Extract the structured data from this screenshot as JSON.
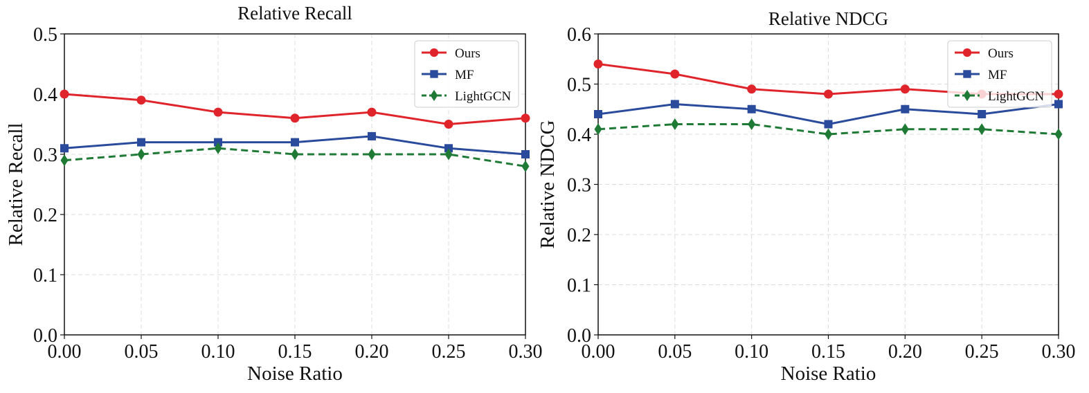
{
  "chart_data": [
    {
      "type": "line",
      "title": "Relative Recall",
      "xlabel": "Noise Ratio",
      "ylabel": "Relative Recall",
      "x": [
        0.0,
        0.05,
        0.1,
        0.15,
        0.2,
        0.25,
        0.3
      ],
      "xticks": [
        "0.00",
        "0.05",
        "0.10",
        "0.15",
        "0.20",
        "0.25",
        "0.30"
      ],
      "yticks": [
        "0.0",
        "0.1",
        "0.2",
        "0.3",
        "0.4",
        "0.5"
      ],
      "xlim": [
        0.0,
        0.3
      ],
      "ylim": [
        0.0,
        0.5
      ],
      "grid": true,
      "legend_position": "top-right",
      "series": [
        {
          "name": "Ours",
          "values": [
            0.4,
            0.39,
            0.37,
            0.36,
            0.37,
            0.35,
            0.36
          ],
          "color": "#e0242b",
          "marker": "circle",
          "dash": "solid"
        },
        {
          "name": "MF",
          "values": [
            0.31,
            0.32,
            0.32,
            0.32,
            0.33,
            0.31,
            0.3
          ],
          "color": "#2a4b9b",
          "marker": "square",
          "dash": "solid"
        },
        {
          "name": "LightGCN",
          "values": [
            0.29,
            0.3,
            0.31,
            0.3,
            0.3,
            0.3,
            0.28
          ],
          "color": "#1f7a35",
          "marker": "diamond",
          "dash": "dashed"
        }
      ]
    },
    {
      "type": "line",
      "title": "Relative NDCG",
      "xlabel": "Noise Ratio",
      "ylabel": "Relative NDCG",
      "x": [
        0.0,
        0.05,
        0.1,
        0.15,
        0.2,
        0.25,
        0.3
      ],
      "xticks": [
        "0.00",
        "0.05",
        "0.10",
        "0.15",
        "0.20",
        "0.25",
        "0.30"
      ],
      "yticks": [
        "0.0",
        "0.1",
        "0.2",
        "0.3",
        "0.4",
        "0.5",
        "0.6"
      ],
      "xlim": [
        0.0,
        0.3
      ],
      "ylim": [
        0.0,
        0.6
      ],
      "grid": true,
      "legend_position": "top-right",
      "series": [
        {
          "name": "Ours",
          "values": [
            0.54,
            0.52,
            0.49,
            0.48,
            0.49,
            0.48,
            0.48
          ],
          "color": "#e0242b",
          "marker": "circle",
          "dash": "solid"
        },
        {
          "name": "MF",
          "values": [
            0.44,
            0.46,
            0.45,
            0.42,
            0.45,
            0.44,
            0.46
          ],
          "color": "#2a4b9b",
          "marker": "square",
          "dash": "solid"
        },
        {
          "name": "LightGCN",
          "values": [
            0.41,
            0.42,
            0.42,
            0.4,
            0.41,
            0.41,
            0.4
          ],
          "color": "#1f7a35",
          "marker": "diamond",
          "dash": "dashed"
        }
      ]
    }
  ]
}
